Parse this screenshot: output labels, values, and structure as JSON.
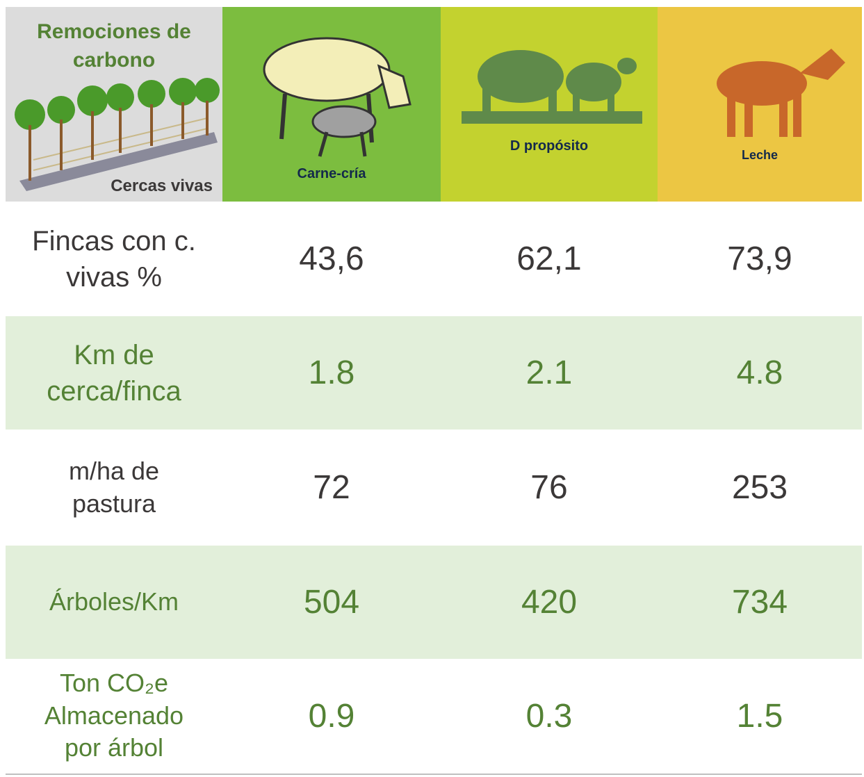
{
  "header": {
    "title": "Remociones de carbono",
    "caption": "Cercas vivas",
    "columns": [
      "Carne-cría",
      "D propósito",
      "Leche"
    ]
  },
  "table": {
    "rows": [
      {
        "label": "Fincas con c. vivas %",
        "values": [
          "43,6",
          "62,1",
          "73,9"
        ]
      },
      {
        "label": "Km de cerca/finca",
        "values": [
          "1.8",
          "2.1",
          "4.8"
        ]
      },
      {
        "label": "m/ha de pastura",
        "values": [
          "72",
          "76",
          "253"
        ]
      },
      {
        "label": "Árboles/Km",
        "values": [
          "504",
          "420",
          "734"
        ]
      },
      {
        "label": "Ton CO₂e Almacenado por árbol",
        "values": [
          "0.9",
          "0.3",
          "1.5"
        ]
      }
    ]
  }
}
